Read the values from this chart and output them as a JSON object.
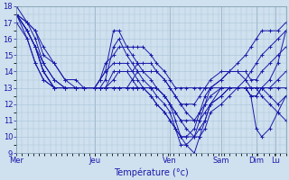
{
  "xlabel": "Température (°c)",
  "background_color": "#cfe0ee",
  "grid_color": "#a8c4d8",
  "line_color": "#1a1aaa",
  "ylim": [
    9,
    18
  ],
  "yticks": [
    9,
    10,
    11,
    12,
    13,
    14,
    15,
    16,
    17,
    18
  ],
  "day_labels": [
    "Mer",
    "Jeu",
    "Ven",
    "Sam",
    "Dim",
    "Lu"
  ],
  "day_x": [
    0,
    0.29,
    0.57,
    0.76,
    0.89,
    0.96
  ],
  "series": [
    {
      "x": [
        0.0,
        0.04,
        0.07,
        0.1,
        0.14,
        0.18,
        0.22,
        0.25,
        0.29,
        0.31,
        0.33,
        0.36,
        0.38,
        0.41,
        0.43,
        0.45,
        0.47,
        0.5,
        0.52,
        0.55,
        0.57,
        0.59,
        0.61,
        0.63,
        0.66,
        0.68,
        0.7,
        0.72,
        0.76,
        0.79,
        0.82,
        0.85,
        0.87,
        0.89,
        0.91,
        0.94,
        0.97,
        1.0
      ],
      "y": [
        17.5,
        17.0,
        16.5,
        15.0,
        14.5,
        13.5,
        13.0,
        13.0,
        13.0,
        13.5,
        14.5,
        15.0,
        15.5,
        15.5,
        15.5,
        15.5,
        15.5,
        15.0,
        14.5,
        14.0,
        13.5,
        13.0,
        13.0,
        13.0,
        13.0,
        13.0,
        13.0,
        13.5,
        14.0,
        14.0,
        14.5,
        15.0,
        15.5,
        16.0,
        16.5,
        16.5,
        16.5,
        17.0
      ]
    },
    {
      "x": [
        0.0,
        0.04,
        0.07,
        0.1,
        0.14,
        0.18,
        0.22,
        0.25,
        0.29,
        0.31,
        0.33,
        0.36,
        0.38,
        0.41,
        0.43,
        0.45,
        0.47,
        0.5,
        0.52,
        0.55,
        0.57,
        0.59,
        0.61,
        0.63,
        0.66,
        0.68,
        0.7,
        0.72,
        0.76,
        0.79,
        0.82,
        0.85,
        0.87,
        0.89,
        0.91,
        0.94,
        0.97,
        1.0
      ],
      "y": [
        17.5,
        17.0,
        16.0,
        14.5,
        13.5,
        13.0,
        13.0,
        13.0,
        13.0,
        13.5,
        14.0,
        14.5,
        14.5,
        14.5,
        14.0,
        13.5,
        13.0,
        13.0,
        13.0,
        12.5,
        12.0,
        11.5,
        11.0,
        11.0,
        11.0,
        11.5,
        12.0,
        12.5,
        13.0,
        13.0,
        13.0,
        13.0,
        12.5,
        12.5,
        13.0,
        13.5,
        14.5,
        16.5
      ]
    },
    {
      "x": [
        0.0,
        0.04,
        0.07,
        0.1,
        0.14,
        0.18,
        0.22,
        0.25,
        0.29,
        0.31,
        0.33,
        0.36,
        0.38,
        0.41,
        0.43,
        0.45,
        0.47,
        0.5,
        0.52,
        0.55,
        0.57,
        0.59,
        0.61,
        0.63,
        0.66,
        0.68,
        0.7,
        0.72,
        0.76,
        0.79,
        0.82,
        0.85,
        0.87,
        0.89,
        0.91,
        0.94,
        0.97,
        1.0
      ],
      "y": [
        18.0,
        17.0,
        16.5,
        15.5,
        14.5,
        13.5,
        13.5,
        13.0,
        13.0,
        13.5,
        14.0,
        16.5,
        16.5,
        15.5,
        15.0,
        14.5,
        14.0,
        13.5,
        13.0,
        12.5,
        12.0,
        11.0,
        10.0,
        10.0,
        10.5,
        11.5,
        12.5,
        13.0,
        13.5,
        14.0,
        14.0,
        14.0,
        13.5,
        13.5,
        14.0,
        14.5,
        15.0,
        15.5
      ]
    },
    {
      "x": [
        0.0,
        0.04,
        0.07,
        0.1,
        0.14,
        0.18,
        0.22,
        0.25,
        0.29,
        0.31,
        0.33,
        0.36,
        0.38,
        0.41,
        0.43,
        0.45,
        0.47,
        0.5,
        0.52,
        0.55,
        0.57,
        0.59,
        0.61,
        0.63,
        0.66,
        0.68,
        0.7,
        0.72,
        0.76,
        0.79,
        0.82,
        0.85,
        0.87,
        0.89,
        0.91,
        0.94,
        0.97,
        1.0
      ],
      "y": [
        17.5,
        16.5,
        15.5,
        14.5,
        13.5,
        13.0,
        13.0,
        13.0,
        13.0,
        13.0,
        13.5,
        15.5,
        16.0,
        15.0,
        14.5,
        14.0,
        13.5,
        13.0,
        12.5,
        12.0,
        11.5,
        10.5,
        9.5,
        9.5,
        10.0,
        11.0,
        12.0,
        13.0,
        13.5,
        14.0,
        14.0,
        13.5,
        13.0,
        13.0,
        13.0,
        12.5,
        12.0,
        12.5
      ]
    },
    {
      "x": [
        0.0,
        0.04,
        0.07,
        0.1,
        0.14,
        0.18,
        0.22,
        0.25,
        0.29,
        0.31,
        0.33,
        0.36,
        0.38,
        0.41,
        0.43,
        0.45,
        0.47,
        0.5,
        0.52,
        0.55,
        0.57,
        0.59,
        0.61,
        0.63,
        0.66,
        0.68,
        0.7,
        0.72,
        0.76,
        0.79,
        0.82,
        0.85,
        0.87,
        0.89,
        0.91,
        0.94,
        0.97,
        1.0
      ],
      "y": [
        17.5,
        16.5,
        15.5,
        14.0,
        13.0,
        13.0,
        13.0,
        13.0,
        13.0,
        13.0,
        13.0,
        13.5,
        14.0,
        14.0,
        14.0,
        14.5,
        14.5,
        14.5,
        14.0,
        13.5,
        13.0,
        12.5,
        12.0,
        11.5,
        11.0,
        11.0,
        11.5,
        12.0,
        13.0,
        13.0,
        13.0,
        13.0,
        13.0,
        13.0,
        12.5,
        12.0,
        11.5,
        11.0
      ]
    },
    {
      "x": [
        0.0,
        0.04,
        0.07,
        0.1,
        0.14,
        0.18,
        0.22,
        0.25,
        0.29,
        0.31,
        0.33,
        0.36,
        0.38,
        0.41,
        0.43,
        0.45,
        0.47,
        0.5,
        0.52,
        0.55,
        0.57,
        0.59,
        0.61,
        0.63,
        0.66,
        0.68,
        0.7,
        0.72,
        0.76,
        0.79,
        0.82,
        0.85,
        0.87,
        0.89,
        0.91,
        0.94,
        0.97,
        1.0
      ],
      "y": [
        17.5,
        16.5,
        15.5,
        14.0,
        13.0,
        13.0,
        13.0,
        13.0,
        13.0,
        13.0,
        13.0,
        14.0,
        14.0,
        14.0,
        13.5,
        13.0,
        13.0,
        12.5,
        12.0,
        11.5,
        11.0,
        10.5,
        10.0,
        9.5,
        9.0,
        10.0,
        11.0,
        12.0,
        12.5,
        13.0,
        13.0,
        13.0,
        12.5,
        10.5,
        10.0,
        10.5,
        11.5,
        12.5
      ]
    },
    {
      "x": [
        0.0,
        0.04,
        0.07,
        0.1,
        0.14,
        0.18,
        0.22,
        0.25,
        0.29,
        0.31,
        0.33,
        0.36,
        0.38,
        0.41,
        0.43,
        0.45,
        0.47,
        0.5,
        0.52,
        0.55,
        0.57,
        0.59,
        0.61,
        0.63,
        0.66,
        0.68,
        0.7,
        0.72,
        0.76,
        0.79,
        0.82,
        0.85,
        0.87,
        0.89,
        0.91,
        0.94,
        0.97,
        1.0
      ],
      "y": [
        17.0,
        16.0,
        14.5,
        13.5,
        13.0,
        13.0,
        13.0,
        13.0,
        13.0,
        13.0,
        13.0,
        13.0,
        13.0,
        13.0,
        13.0,
        13.0,
        13.0,
        13.0,
        13.0,
        12.5,
        12.0,
        11.5,
        11.0,
        10.5,
        10.0,
        10.0,
        10.5,
        11.5,
        12.0,
        12.5,
        13.0,
        13.0,
        13.0,
        13.0,
        13.0,
        13.0,
        13.0,
        13.0
      ]
    },
    {
      "x": [
        0.0,
        0.04,
        0.07,
        0.1,
        0.14,
        0.18,
        0.22,
        0.25,
        0.29,
        0.31,
        0.33,
        0.36,
        0.38,
        0.41,
        0.43,
        0.45,
        0.47,
        0.5,
        0.52,
        0.55,
        0.57,
        0.59,
        0.61,
        0.63,
        0.66,
        0.68,
        0.7,
        0.72,
        0.76,
        0.79,
        0.82,
        0.85,
        0.87,
        0.89,
        0.91,
        0.94,
        0.97,
        1.0
      ],
      "y": [
        17.5,
        16.0,
        14.5,
        13.5,
        13.0,
        13.0,
        13.0,
        13.0,
        13.0,
        13.0,
        13.0,
        13.0,
        13.0,
        13.0,
        13.0,
        13.0,
        13.0,
        12.5,
        12.0,
        11.5,
        11.0,
        10.5,
        10.0,
        10.0,
        10.0,
        10.5,
        11.0,
        12.0,
        12.5,
        13.0,
        13.0,
        13.5,
        14.0,
        14.5,
        15.0,
        15.5,
        16.0,
        16.5
      ]
    },
    {
      "x": [
        0.0,
        0.04,
        0.07,
        0.1,
        0.14,
        0.18,
        0.22,
        0.25,
        0.29,
        0.31,
        0.33,
        0.36,
        0.38,
        0.41,
        0.43,
        0.45,
        0.47,
        0.5,
        0.52,
        0.55,
        0.57,
        0.59,
        0.61,
        0.63,
        0.66,
        0.68,
        0.7,
        0.72,
        0.76,
        0.79,
        0.82,
        0.85,
        0.87,
        0.89,
        0.91,
        0.94,
        0.97,
        1.0
      ],
      "y": [
        17.5,
        16.5,
        15.5,
        14.0,
        13.0,
        13.0,
        13.0,
        13.0,
        13.0,
        13.0,
        13.0,
        13.0,
        13.0,
        13.0,
        13.5,
        14.0,
        14.0,
        14.0,
        14.0,
        13.5,
        13.0,
        12.5,
        12.0,
        12.0,
        12.0,
        12.5,
        13.0,
        13.0,
        13.0,
        13.0,
        13.0,
        13.0,
        12.5,
        12.5,
        13.0,
        13.0,
        13.5,
        14.0
      ]
    }
  ],
  "figsize": [
    3.2,
    2.0
  ],
  "dpi": 100
}
